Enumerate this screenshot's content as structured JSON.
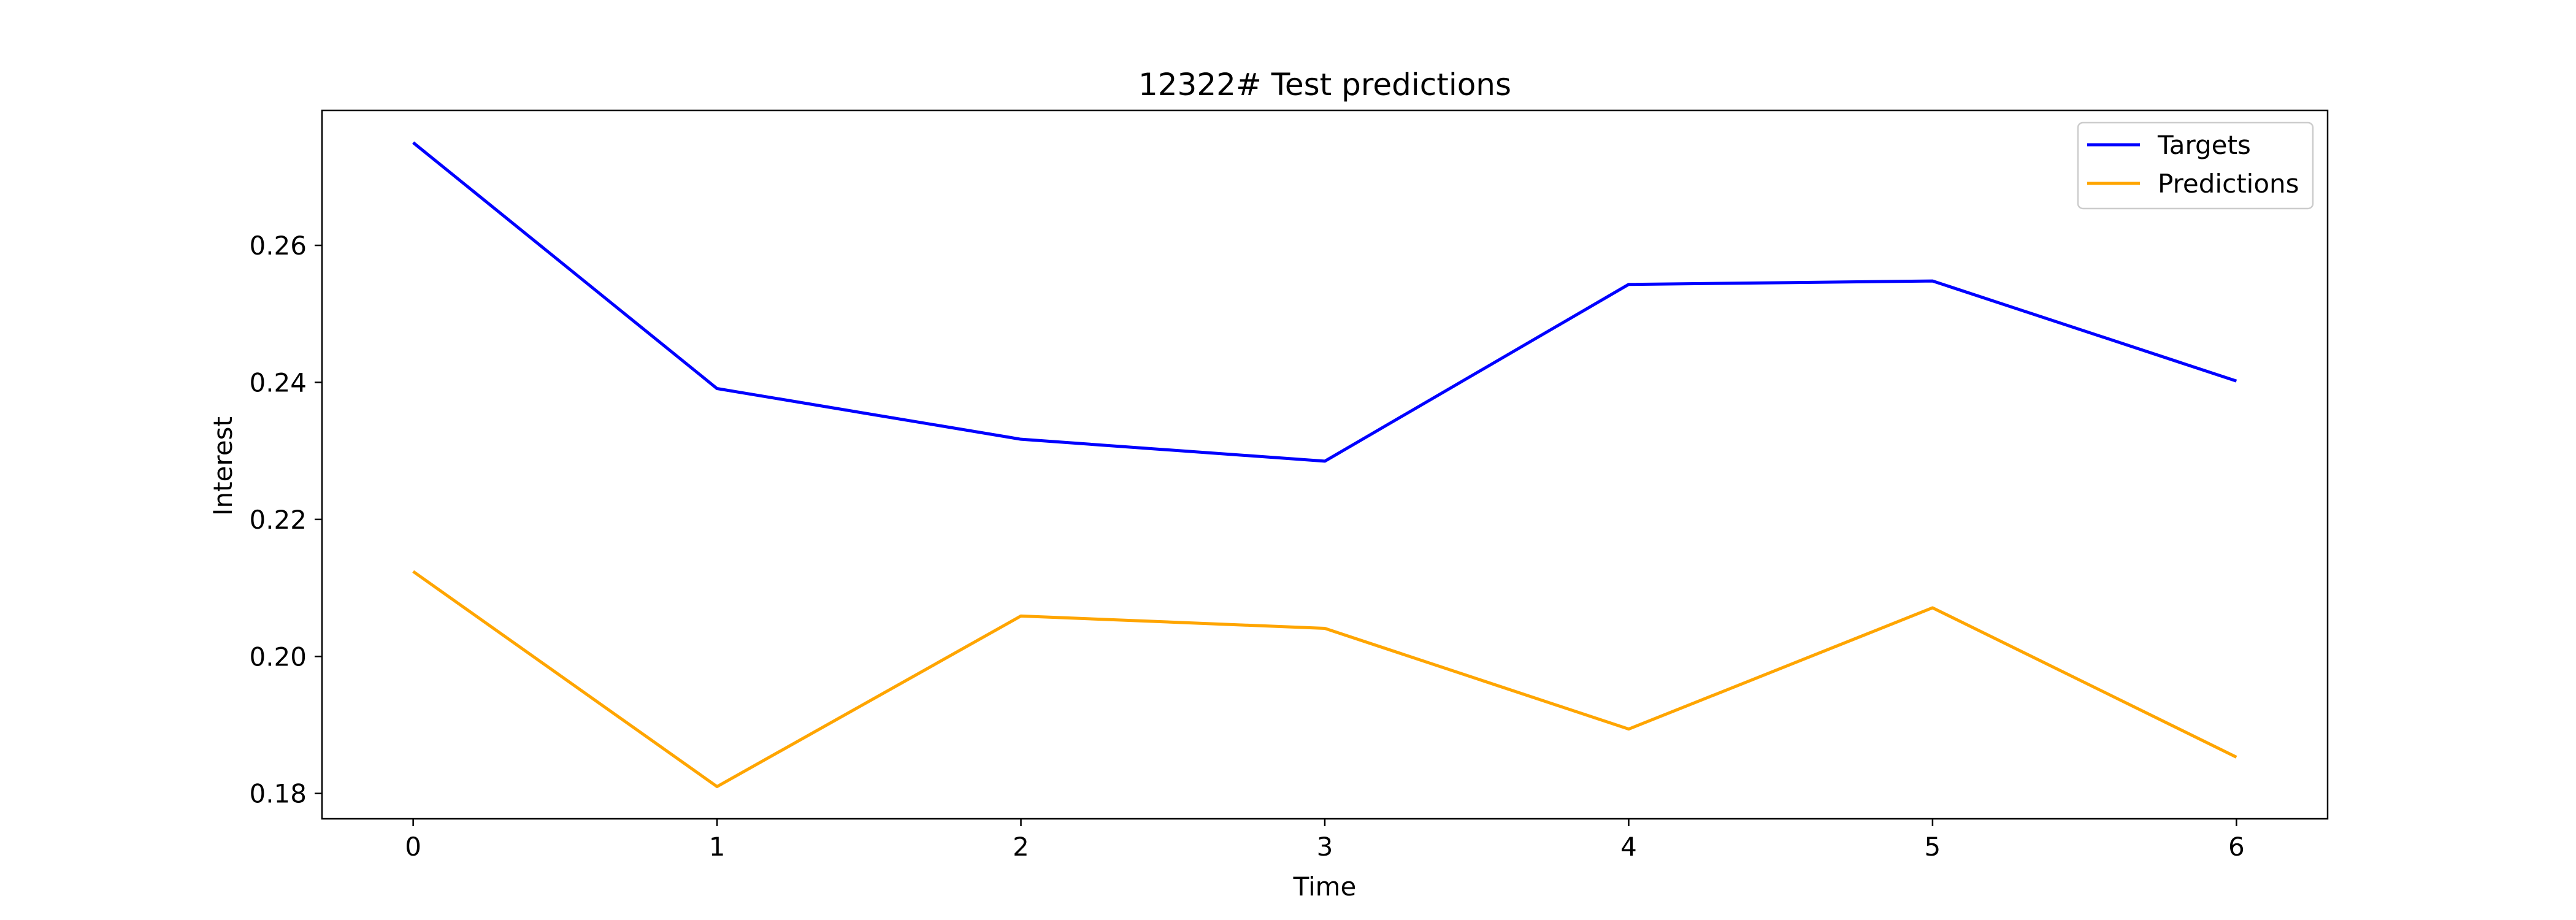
{
  "chart_data": {
    "type": "line",
    "title": "12322# Test predictions",
    "xlabel": "Time",
    "ylabel": "Interest",
    "x": [
      0,
      1,
      2,
      3,
      4,
      5,
      6
    ],
    "xticks": [
      "0",
      "1",
      "2",
      "3",
      "4",
      "5",
      "6"
    ],
    "yticks": [
      "0.18",
      "0.20",
      "0.22",
      "0.24",
      "0.26"
    ],
    "xlim": [
      -0.3,
      6.3
    ],
    "ylim": [
      0.1763,
      0.2797
    ],
    "grid": false,
    "legend_position": "top-right",
    "series": [
      {
        "name": "Targets",
        "color": "#0000ff",
        "values": [
          0.275,
          0.2391,
          0.2317,
          0.2285,
          0.2543,
          0.2548,
          0.2402
        ]
      },
      {
        "name": "Predictions",
        "color": "#ffa500",
        "values": [
          0.2124,
          0.181,
          0.2059,
          0.2041,
          0.1894,
          0.2071,
          0.1853
        ]
      }
    ]
  }
}
